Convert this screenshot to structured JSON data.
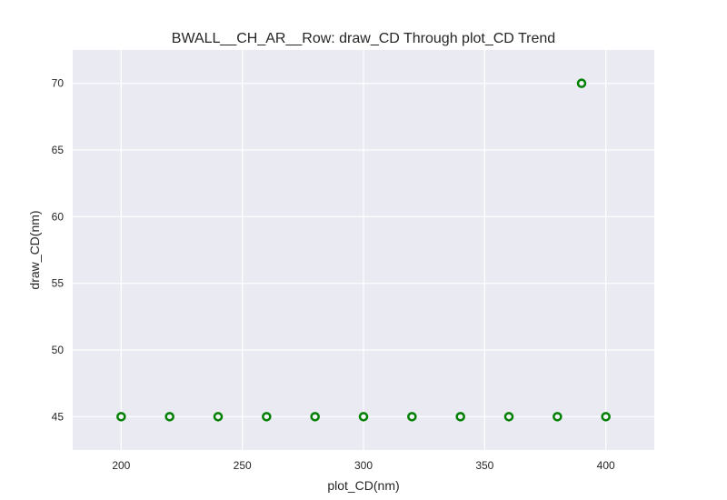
{
  "chart_data": {
    "type": "scatter",
    "title": "BWALL__CH_AR__Row: draw_CD Through plot_CD Trend",
    "xlabel": "plot_CD(nm)",
    "ylabel": "draw_CD(nm)",
    "xlim": [
      180,
      420
    ],
    "ylim": [
      42.5,
      72.5
    ],
    "xticks": [
      200,
      250,
      300,
      350,
      400
    ],
    "yticks": [
      45,
      50,
      55,
      60,
      65,
      70
    ],
    "grid": true,
    "legend": "none",
    "series": [
      {
        "x": [
          200,
          220,
          240,
          260,
          280,
          300,
          320,
          340,
          360,
          380,
          390,
          400
        ],
        "y": [
          45,
          45,
          45,
          45,
          45,
          45,
          45,
          45,
          45,
          45,
          70,
          45
        ],
        "marker": "circle-open",
        "color": "#008000"
      }
    ],
    "colors": {
      "plot_background": "#EAEAF2",
      "grid": "#FFFFFF",
      "text": "#262626",
      "marker": "#008000"
    }
  }
}
